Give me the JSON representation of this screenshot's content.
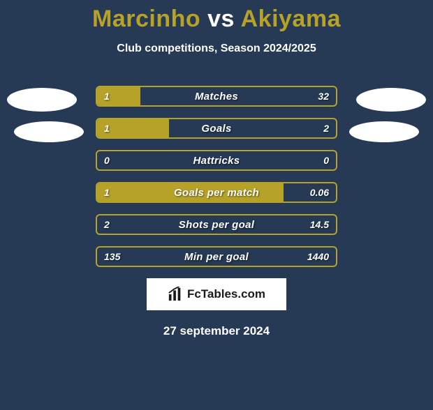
{
  "background_color": "#263955",
  "accent_color": "#b6a229",
  "text_color": "#ffffff",
  "title": {
    "player1": "Marcinho",
    "vs": "vs",
    "player2": "Akiyama",
    "p1_color": "#b6a229",
    "p2_color": "#b6a229",
    "vs_color": "#ffffff",
    "fontsize": 34
  },
  "subtitle": "Club competitions, Season 2024/2025",
  "badges": {
    "shape": "ellipse",
    "color": "#ffffff"
  },
  "comparison": {
    "type": "bar",
    "bar_border_color": "#b6a229",
    "bar_fill_color": "#b6a229",
    "label_fontsize": 15,
    "value_fontsize": 14,
    "rows": [
      {
        "label": "Matches",
        "left_val": "1",
        "right_val": "32",
        "fill_pct": 18
      },
      {
        "label": "Goals",
        "left_val": "1",
        "right_val": "2",
        "fill_pct": 30
      },
      {
        "label": "Hattricks",
        "left_val": "0",
        "right_val": "0",
        "fill_pct": 0
      },
      {
        "label": "Goals per match",
        "left_val": "1",
        "right_val": "0.06",
        "fill_pct": 78
      },
      {
        "label": "Shots per goal",
        "left_val": "2",
        "right_val": "14.5",
        "fill_pct": 0
      },
      {
        "label": "Min per goal",
        "left_val": "135",
        "right_val": "1440",
        "fill_pct": 0
      }
    ]
  },
  "brand": {
    "icon": "bar-chart-icon",
    "text": "FcTables.com",
    "background": "#ffffff",
    "text_color": "#1a1a1a"
  },
  "date": "27 september 2024"
}
